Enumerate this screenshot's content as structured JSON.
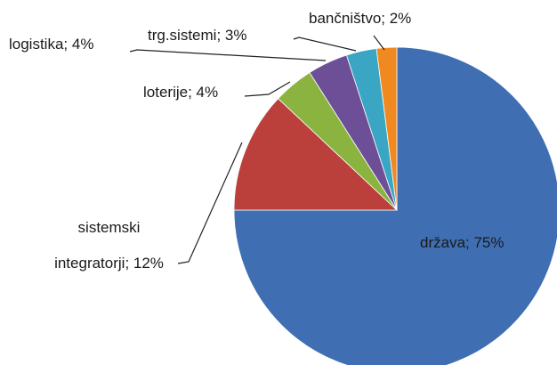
{
  "chart_data": {
    "type": "pie",
    "values": [
      75,
      12,
      4,
      4,
      3,
      2
    ],
    "value_labels": [
      "država; 75%",
      "sistemski\nintegratorji; 12%",
      "loterije; 4%",
      "logistika; 4%",
      "trg.sistemi; 3%",
      "bančništvo; 2%"
    ],
    "colors": [
      "#3f6fb2",
      "#bb403c",
      "#8bb340",
      "#6c4f97",
      "#3aa6c4",
      "#f0891f"
    ]
  }
}
